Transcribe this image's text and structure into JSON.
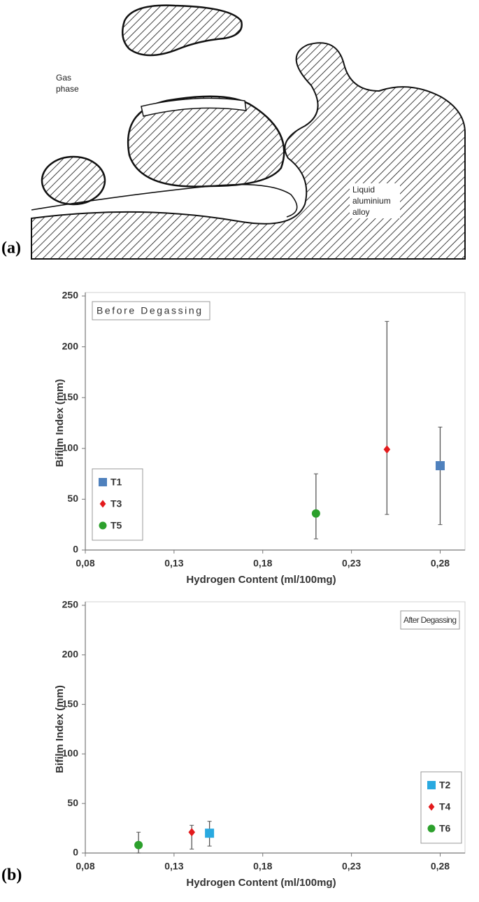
{
  "diagram": {
    "label": "(a)",
    "gas_phase": [
      "Gas",
      "phase"
    ],
    "liquid": [
      "Liquid",
      "aluminium",
      "alloy"
    ]
  },
  "panel_b_label": "(b)",
  "chart_data": [
    {
      "type": "scatter",
      "annotation": "Before Degassing",
      "xlabel": "Hydrogen Content (ml/100mg)",
      "ylabel": "Bifilm Index (mm)",
      "xlim": [
        0.08,
        0.294
      ],
      "xticks": [
        {
          "value": 0.08,
          "label": "0,08"
        },
        {
          "value": 0.13,
          "label": "0,13"
        },
        {
          "value": 0.18,
          "label": "0,18"
        },
        {
          "value": 0.23,
          "label": "0,23"
        },
        {
          "value": 0.28,
          "label": "0,28"
        }
      ],
      "ylim": [
        0,
        250
      ],
      "yticks": [
        0,
        50,
        100,
        150,
        200,
        250
      ],
      "legend": "lower left",
      "series": [
        {
          "name": "T1",
          "color": "#4f81bd",
          "marker": "square",
          "x": [
            0.28
          ],
          "values": [
            83
          ],
          "error_minus": [
            58
          ],
          "error_plus": [
            38
          ]
        },
        {
          "name": "T3",
          "color": "#e31a1c",
          "marker": "diamond",
          "x": [
            0.25
          ],
          "values": [
            99
          ],
          "error_minus": [
            64
          ],
          "error_plus": [
            126
          ]
        },
        {
          "name": "T5",
          "color": "#2ca02c",
          "marker": "circle",
          "x": [
            0.21
          ],
          "values": [
            36
          ],
          "error_minus": [
            25
          ],
          "error_plus": [
            39
          ]
        }
      ]
    },
    {
      "type": "scatter",
      "annotation": "After Degassing",
      "xlabel": "Hydrogen Content (ml/100mg)",
      "ylabel": "Bifilm Index (mm)",
      "xlim": [
        0.08,
        0.294
      ],
      "xticks": [
        {
          "value": 0.08,
          "label": "0,08"
        },
        {
          "value": 0.13,
          "label": "0,13"
        },
        {
          "value": 0.18,
          "label": "0,18"
        },
        {
          "value": 0.23,
          "label": "0,23"
        },
        {
          "value": 0.28,
          "label": "0,28"
        }
      ],
      "ylim": [
        0,
        250
      ],
      "yticks": [
        0,
        50,
        100,
        150,
        200,
        250
      ],
      "legend": "lower right",
      "series": [
        {
          "name": "T2",
          "color": "#29a9e0",
          "marker": "square",
          "x": [
            0.15
          ],
          "values": [
            20
          ],
          "error_minus": [
            13
          ],
          "error_plus": [
            12
          ]
        },
        {
          "name": "T4",
          "color": "#e31a1c",
          "marker": "diamond",
          "x": [
            0.14
          ],
          "values": [
            21
          ],
          "error_minus": [
            17
          ],
          "error_plus": [
            7
          ]
        },
        {
          "name": "T6",
          "color": "#2ca02c",
          "marker": "circle",
          "x": [
            0.11
          ],
          "values": [
            8
          ],
          "error_minus": [
            8
          ],
          "error_plus": [
            13
          ]
        }
      ]
    }
  ]
}
